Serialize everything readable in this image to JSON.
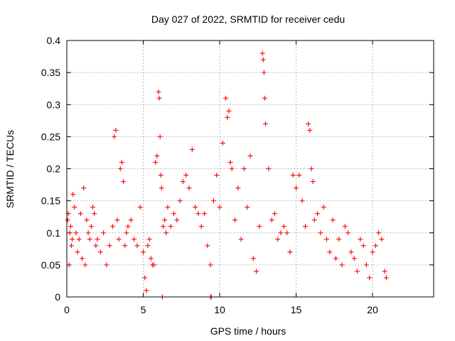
{
  "chart_data": {
    "type": "scatter",
    "title": "Day 027 of 2022, SRMTID for receiver cedu",
    "xlabel": "GPS time / hours",
    "ylabel": "SRMTID / TECUs",
    "xlim": [
      0,
      24
    ],
    "ylim": [
      0,
      0.4
    ],
    "xticks": [
      0,
      5,
      10,
      15,
      20
    ],
    "yticks": [
      0,
      0.05,
      0.1,
      0.15,
      0.2,
      0.25,
      0.3,
      0.35,
      0.4
    ],
    "xtick_labels": [
      "0",
      "5",
      "10",
      "15",
      "20"
    ],
    "ytick_labels": [
      "0",
      "0.05",
      "0.1",
      "0.15",
      "0.2",
      "0.25",
      "0.3",
      "0.35",
      "0.4"
    ],
    "grid": true,
    "marker": "+",
    "series": [
      {
        "name": "SRMTID",
        "color": "#ff0000",
        "x": [
          0.05,
          0.1,
          0.15,
          0.2,
          0.25,
          0.3,
          0.35,
          0.4,
          0.5,
          0.6,
          0.7,
          0.8,
          0.9,
          1.0,
          1.1,
          1.2,
          1.3,
          1.4,
          1.5,
          1.6,
          1.7,
          1.8,
          1.9,
          2.0,
          2.2,
          2.4,
          2.6,
          2.8,
          3.0,
          3.1,
          3.2,
          3.3,
          3.4,
          3.5,
          3.6,
          3.7,
          3.8,
          3.9,
          4.0,
          4.2,
          4.4,
          4.6,
          4.8,
          5.0,
          5.1,
          5.2,
          5.3,
          5.4,
          5.5,
          5.6,
          5.7,
          5.8,
          5.9,
          6.0,
          6.05,
          6.1,
          6.15,
          6.2,
          6.3,
          6.4,
          6.5,
          6.6,
          6.8,
          7.0,
          7.2,
          7.4,
          7.6,
          7.8,
          8.0,
          8.2,
          8.4,
          8.6,
          8.8,
          9.0,
          9.2,
          9.4,
          9.6,
          9.8,
          10.0,
          10.2,
          10.4,
          10.5,
          10.6,
          10.7,
          10.8,
          11.0,
          11.2,
          11.4,
          11.6,
          11.8,
          12.0,
          12.2,
          12.4,
          12.6,
          12.8,
          12.85,
          12.9,
          12.95,
          13.0,
          13.2,
          13.4,
          13.6,
          13.8,
          14.0,
          14.2,
          14.4,
          14.6,
          14.8,
          15.0,
          15.2,
          15.4,
          15.6,
          15.8,
          15.9,
          16.0,
          16.1,
          16.2,
          16.4,
          16.6,
          16.8,
          17.0,
          17.2,
          17.4,
          17.6,
          17.8,
          18.0,
          18.2,
          18.4,
          18.6,
          18.8,
          19.0,
          19.2,
          19.4,
          19.6,
          19.8,
          20.0,
          20.2,
          20.4,
          20.6,
          20.8,
          20.9
        ],
        "y": [
          0.12,
          0.13,
          0.05,
          0.1,
          0.11,
          0.08,
          0.09,
          0.16,
          0.14,
          0.1,
          0.07,
          0.09,
          0.13,
          0.06,
          0.17,
          0.05,
          0.12,
          0.1,
          0.09,
          0.11,
          0.14,
          0.13,
          0.08,
          0.09,
          0.07,
          0.1,
          0.05,
          0.08,
          0.11,
          0.25,
          0.26,
          0.12,
          0.09,
          0.2,
          0.21,
          0.18,
          0.08,
          0.1,
          0.11,
          0.12,
          0.09,
          0.08,
          0.14,
          0.07,
          0.03,
          0.01,
          0.08,
          0.09,
          0.06,
          0.05,
          0.05,
          0.21,
          0.22,
          0.32,
          0.31,
          0.25,
          0.19,
          0.17,
          0.11,
          0.12,
          0.1,
          0.14,
          0.11,
          0.13,
          0.12,
          0.15,
          0.18,
          0.19,
          0.17,
          0.23,
          0.14,
          0.13,
          0.11,
          0.13,
          0.08,
          0.05,
          0.15,
          0.19,
          0.14,
          0.24,
          0.31,
          0.28,
          0.29,
          0.21,
          0.2,
          0.12,
          0.17,
          0.09,
          0.2,
          0.14,
          0.22,
          0.06,
          0.04,
          0.11,
          0.38,
          0.37,
          0.35,
          0.31,
          0.27,
          0.2,
          0.12,
          0.13,
          0.09,
          0.1,
          0.11,
          0.1,
          0.07,
          0.19,
          0.17,
          0.19,
          0.15,
          0.11,
          0.27,
          0.26,
          0.2,
          0.18,
          0.12,
          0.13,
          0.1,
          0.14,
          0.09,
          0.07,
          0.12,
          0.06,
          0.09,
          0.05,
          0.11,
          0.1,
          0.07,
          0.06,
          0.04,
          0.09,
          0.08,
          0.05,
          0.03,
          0.07,
          0.08,
          0.1,
          0.09,
          0.04,
          0.03
        ],
        "gaps_at_zero": [
          6.25,
          9.4,
          9.45
        ]
      }
    ]
  }
}
